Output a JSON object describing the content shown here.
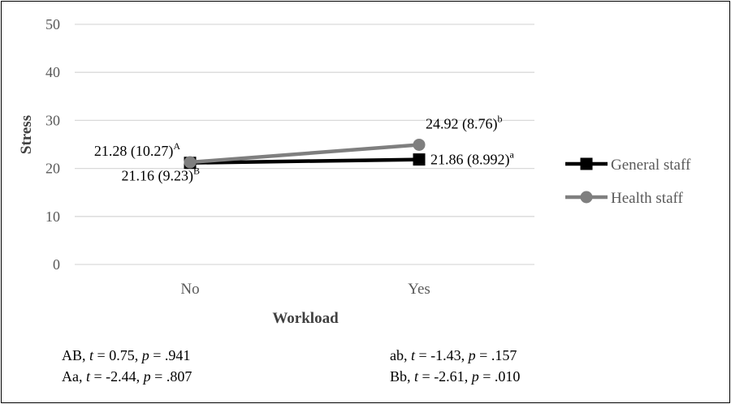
{
  "chart_data": {
    "type": "line",
    "categories": [
      "No",
      "Yes"
    ],
    "xlabel": "Workload",
    "ylabel": "Stress",
    "ylim": [
      0,
      50
    ],
    "yticks": [
      0,
      10,
      20,
      30,
      40,
      50
    ],
    "grid": true,
    "legend": "right",
    "series": [
      {
        "name": "General staff",
        "values": [
          21.16,
          21.86
        ],
        "color": "#000000",
        "marker": "square",
        "labels": [
          {
            "text": "21.16 (9.23)",
            "sup": "B"
          },
          {
            "text": "21.86 (8.992)",
            "sup": "a"
          }
        ]
      },
      {
        "name": "Health staff",
        "values": [
          21.28,
          24.92
        ],
        "color": "#7f7f7f",
        "marker": "circle",
        "labels": [
          {
            "text": "21.28 (10.27)",
            "sup": "A"
          },
          {
            "text": "24.92 (8.76)",
            "sup": "b"
          }
        ]
      }
    ]
  },
  "notes": [
    {
      "prefix": "AB, ",
      "t": "0.75",
      "p": ".941"
    },
    {
      "prefix": "ab, ",
      "t": "-1.43",
      "p": ".157"
    },
    {
      "prefix": "Aa, ",
      "t": "-2.44",
      "p": ".807"
    },
    {
      "prefix": "Bb, ",
      "t": "-2.61",
      "p": ".010"
    }
  ],
  "note_labels": {
    "t": "t",
    "p": "p",
    "eq": " = ",
    "sep": ", "
  }
}
